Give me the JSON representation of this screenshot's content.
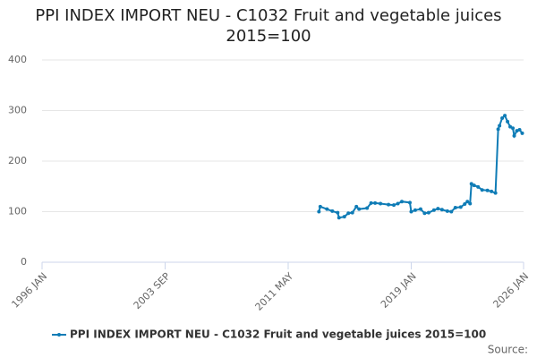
{
  "chart_data": {
    "type": "line",
    "title": "PPI INDEX IMPORT NEU - C1032 Fruit and vegetable juices 2015=100",
    "source": "Source:",
    "x": [
      "2013-04",
      "2013-05",
      "2013-10",
      "2014-02",
      "2014-06",
      "2014-07",
      "2014-11",
      "2015-02",
      "2015-05",
      "2015-08",
      "2015-10",
      "2016-04",
      "2016-07",
      "2016-10",
      "2017-02",
      "2017-08",
      "2017-12",
      "2018-03",
      "2018-06",
      "2018-12",
      "2019-01",
      "2019-04",
      "2019-08",
      "2019-11",
      "2020-02",
      "2020-06",
      "2020-09",
      "2020-12",
      "2021-04",
      "2021-07",
      "2021-10",
      "2022-02",
      "2022-05",
      "2022-07",
      "2022-09",
      "2022-10",
      "2022-12",
      "2023-03",
      "2023-06",
      "2023-10",
      "2024-01",
      "2024-04",
      "2024-06",
      "2024-07",
      "2024-09",
      "2024-11",
      "2025-01",
      "2025-03",
      "2025-05",
      "2025-06",
      "2025-08",
      "2025-10",
      "2025-12"
    ],
    "series": [
      {
        "name": "PPI INDEX IMPORT NEU - C1032 Fruit and vegetable juices 2015=100",
        "color": "#0f7cb6",
        "values": [
          100,
          110,
          105,
          101,
          98,
          88,
          90,
          97,
          98,
          110,
          105,
          107,
          117,
          117,
          116,
          114,
          113,
          116,
          120,
          118,
          100,
          103,
          105,
          97,
          98,
          103,
          106,
          104,
          101,
          100,
          108,
          109,
          115,
          120,
          116,
          155,
          152,
          149,
          143,
          142,
          140,
          137,
          263,
          270,
          285,
          290,
          278,
          268,
          265,
          250,
          260,
          262,
          255
        ]
      }
    ],
    "xlim": [
      "1996-01",
      "2026-01"
    ],
    "xticks": [
      {
        "value": "1996-01",
        "label": "1996 JAN"
      },
      {
        "value": "2003-09",
        "label": "2003 SEP"
      },
      {
        "value": "2011-05",
        "label": "2011 MAY"
      },
      {
        "value": "2019-01",
        "label": "2019 JAN"
      },
      {
        "value": "2026-01",
        "label": "2026 JAN"
      }
    ],
    "ylim": [
      0,
      400
    ],
    "yticks": [
      0,
      100,
      200,
      300,
      400
    ],
    "grid": true
  }
}
